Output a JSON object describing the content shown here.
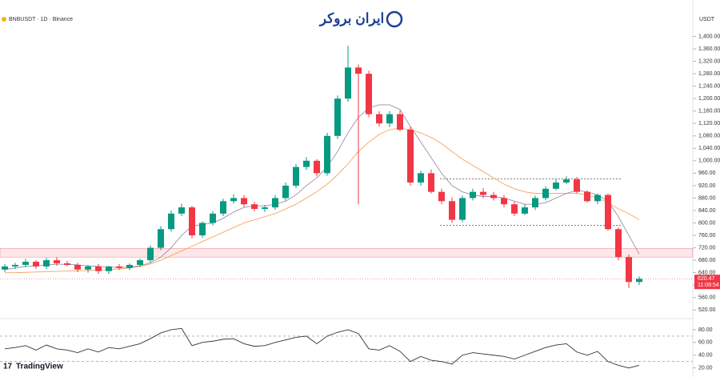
{
  "chart_data": {
    "type": "candlestick",
    "symbol": "BNBUSDT · 1D · Binance",
    "currency": "USDT",
    "watermark": "ایران بروکر",
    "brand": "TradingView",
    "last_price": 620.47,
    "countdown": "11:08:54",
    "up_color": "#089981",
    "down_color": "#f23645",
    "open": [
      650,
      660,
      665,
      675,
      660,
      680,
      670,
      665,
      650,
      660,
      645,
      660,
      655,
      665,
      680,
      720,
      780,
      830,
      850,
      760,
      800,
      830,
      870,
      880,
      860,
      845,
      850,
      880,
      920,
      980,
      1000,
      960,
      1080,
      1200,
      1300,
      1280,
      1150,
      1120,
      1150,
      1100,
      930,
      960,
      900,
      870,
      810,
      880,
      900,
      890,
      880,
      860,
      830,
      850,
      880,
      910,
      930,
      940,
      900,
      870,
      890,
      780,
      690,
      610
    ],
    "high": [
      668,
      672,
      685,
      680,
      688,
      690,
      678,
      672,
      665,
      668,
      662,
      668,
      670,
      685,
      728,
      790,
      840,
      862,
      855,
      805,
      838,
      878,
      892,
      890,
      868,
      858,
      890,
      930,
      990,
      1012,
      1005,
      1090,
      1210,
      1370,
      1310,
      1290,
      1160,
      1160,
      1162,
      1110,
      968,
      972,
      910,
      882,
      888,
      910,
      912,
      900,
      890,
      868,
      860,
      888,
      918,
      940,
      950,
      948,
      905,
      895,
      895,
      785,
      698,
      628
    ],
    "low": [
      642,
      652,
      658,
      652,
      652,
      662,
      660,
      642,
      640,
      636,
      636,
      648,
      648,
      658,
      672,
      712,
      772,
      822,
      750,
      752,
      792,
      822,
      862,
      852,
      838,
      835,
      842,
      872,
      912,
      970,
      950,
      952,
      1070,
      1190,
      860,
      1140,
      1110,
      1108,
      1095,
      920,
      920,
      895,
      860,
      800,
      802,
      872,
      880,
      872,
      850,
      822,
      825,
      842,
      872,
      905,
      925,
      895,
      865,
      860,
      775,
      680,
      590,
      600
    ],
    "close": [
      660,
      665,
      675,
      660,
      680,
      670,
      665,
      650,
      660,
      645,
      660,
      655,
      665,
      680,
      720,
      780,
      830,
      850,
      760,
      800,
      830,
      870,
      880,
      860,
      845,
      850,
      880,
      920,
      980,
      1000,
      960,
      1080,
      1200,
      1300,
      1280,
      1150,
      1120,
      1150,
      1100,
      930,
      960,
      900,
      870,
      810,
      880,
      900,
      890,
      880,
      860,
      830,
      850,
      880,
      910,
      930,
      940,
      900,
      870,
      890,
      780,
      690,
      610,
      620
    ],
    "ma_fast": {
      "color": "#9a8fa8",
      "values": [
        650,
        655,
        660,
        662,
        665,
        667,
        667,
        665,
        662,
        660,
        658,
        657,
        658,
        662,
        672,
        690,
        720,
        760,
        790,
        795,
        800,
        815,
        835,
        850,
        855,
        855,
        860,
        870,
        890,
        920,
        945,
        980,
        1030,
        1090,
        1140,
        1170,
        1180,
        1180,
        1165,
        1110,
        1060,
        1010,
        960,
        920,
        900,
        890,
        885,
        885,
        880,
        870,
        860,
        860,
        865,
        880,
        895,
        905,
        900,
        890,
        870,
        820,
        760,
        700
      ]
    },
    "ma_slow": {
      "color": "#f7a35c",
      "values": [
        640,
        640,
        641,
        642,
        643,
        644,
        645,
        646,
        647,
        648,
        650,
        652,
        655,
        660,
        668,
        680,
        695,
        710,
        725,
        740,
        755,
        770,
        785,
        800,
        810,
        820,
        830,
        845,
        860,
        880,
        900,
        925,
        955,
        990,
        1030,
        1060,
        1085,
        1100,
        1105,
        1100,
        1090,
        1075,
        1055,
        1030,
        1005,
        985,
        965,
        945,
        925,
        910,
        900,
        895,
        895,
        895,
        895,
        895,
        890,
        880,
        865,
        845,
        830,
        810
      ]
    },
    "zone": [
      690,
      718
    ],
    "levels": [
      942,
      792
    ],
    "ylim": [
      500,
      1440
    ],
    "yticks": [
      {
        "value": 1400,
        "label": "1,400.00"
      },
      {
        "value": 1360,
        "label": "1,360.00"
      },
      {
        "value": 1320,
        "label": "1,320.00"
      },
      {
        "value": 1280,
        "label": "1,280.00"
      },
      {
        "value": 1240,
        "label": "1,240.00"
      },
      {
        "value": 1200,
        "label": "1,200.00"
      },
      {
        "value": 1160,
        "label": "1,160.00"
      },
      {
        "value": 1120,
        "label": "1,120.00"
      },
      {
        "value": 1080,
        "label": "1,080.00"
      },
      {
        "value": 1040,
        "label": "1,040.00"
      },
      {
        "value": 1000,
        "label": "1,000.00"
      },
      {
        "value": 960,
        "label": "960.00"
      },
      {
        "value": 920,
        "label": "920.00"
      },
      {
        "value": 880,
        "label": "880.00"
      },
      {
        "value": 840,
        "label": "840.00"
      },
      {
        "value": 800,
        "label": "800.00"
      },
      {
        "value": 760,
        "label": "760.00"
      },
      {
        "value": 720,
        "label": "720.00"
      },
      {
        "value": 680,
        "label": "680.00"
      },
      {
        "value": 640,
        "label": "640.00"
      },
      {
        "value": 600,
        "label": "600.00"
      },
      {
        "value": 560,
        "label": "560.00"
      },
      {
        "value": 520,
        "label": "520.00"
      }
    ],
    "rsi": {
      "color": "#333333",
      "values": [
        50,
        52,
        55,
        48,
        56,
        50,
        48,
        44,
        50,
        45,
        52,
        50,
        54,
        58,
        66,
        75,
        80,
        82,
        55,
        60,
        62,
        65,
        66,
        58,
        54,
        55,
        60,
        64,
        68,
        70,
        58,
        70,
        76,
        80,
        74,
        50,
        48,
        55,
        46,
        30,
        38,
        32,
        30,
        26,
        40,
        44,
        42,
        40,
        38,
        34,
        40,
        46,
        52,
        56,
        58,
        45,
        40,
        46,
        30,
        24,
        20,
        24
      ],
      "ylim": [
        12,
        90
      ],
      "bands": [
        70,
        30
      ],
      "yticks": [
        {
          "value": 80,
          "label": "80.00"
        },
        {
          "value": 60,
          "label": "60.00"
        },
        {
          "value": 40,
          "label": "40.00"
        },
        {
          "value": 20,
          "label": "20.00"
        }
      ]
    }
  }
}
